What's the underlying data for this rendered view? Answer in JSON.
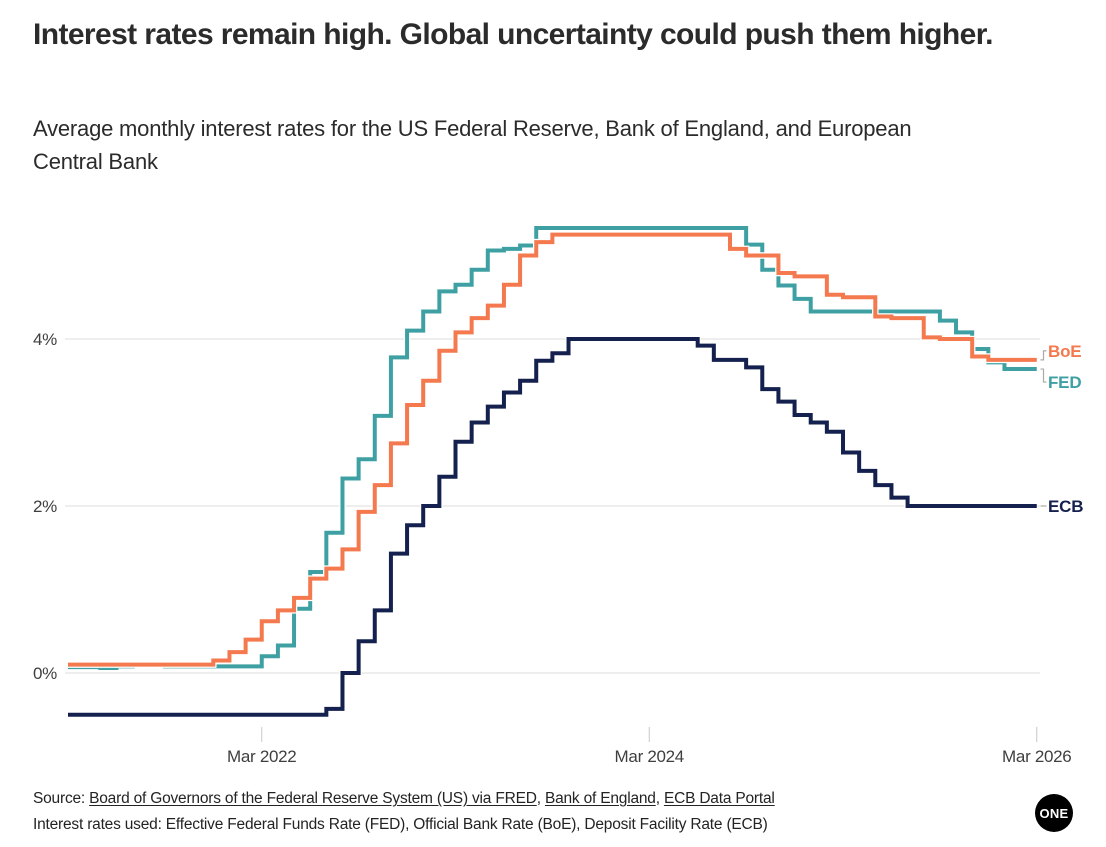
{
  "chart_data": {
    "type": "line",
    "style": "step",
    "title": "Interest rates remain high. Global uncertainty could push them higher.",
    "subtitle": "Average monthly interest rates for the US Federal Reserve, Bank of England, and European Central Bank",
    "unit": "%",
    "x_frequency": "monthly",
    "x_start_month": "2021-03",
    "x_end_month": "2026-02",
    "grid": "horizontal",
    "legend_position": "line-end-labels",
    "ylim": [
      -0.75,
      5.6
    ],
    "y_ticks": [
      {
        "label": "0%",
        "value": 0
      },
      {
        "label": "2%",
        "value": 2
      },
      {
        "label": "4%",
        "value": 4
      }
    ],
    "x_ticks": [
      {
        "label": "Mar 2022",
        "month_index": 12
      },
      {
        "label": "Mar 2024",
        "month_index": 36
      },
      {
        "label": "Mar 2026",
        "month_index": 60
      }
    ],
    "series": [
      {
        "name": "FED",
        "label": "FED",
        "color": "#3FA0A4",
        "values": [
          0.07,
          0.07,
          0.06,
          0.08,
          0.1,
          0.09,
          0.08,
          0.08,
          0.08,
          0.08,
          0.08,
          0.08,
          0.2,
          0.33,
          0.77,
          1.21,
          1.68,
          2.33,
          2.56,
          3.08,
          3.78,
          4.1,
          4.33,
          4.57,
          4.65,
          4.83,
          5.06,
          5.08,
          5.12,
          5.33,
          5.33,
          5.33,
          5.33,
          5.33,
          5.33,
          5.33,
          5.33,
          5.33,
          5.33,
          5.33,
          5.33,
          5.33,
          5.13,
          4.83,
          4.64,
          4.48,
          4.33,
          4.33,
          4.33,
          4.33,
          4.33,
          4.33,
          4.33,
          4.33,
          4.22,
          4.08,
          3.88,
          3.72,
          3.64,
          3.64
        ]
      },
      {
        "name": "BoE",
        "label": "BoE",
        "color": "#F4794E",
        "values": [
          0.1,
          0.1,
          0.1,
          0.1,
          0.1,
          0.1,
          0.1,
          0.1,
          0.1,
          0.15,
          0.25,
          0.4,
          0.62,
          0.75,
          0.9,
          1.13,
          1.25,
          1.48,
          1.93,
          2.25,
          2.75,
          3.21,
          3.5,
          3.86,
          4.08,
          4.25,
          4.4,
          4.65,
          5.0,
          5.16,
          5.25,
          5.25,
          5.25,
          5.25,
          5.25,
          5.25,
          5.25,
          5.25,
          5.25,
          5.25,
          5.25,
          5.08,
          5.0,
          5.0,
          4.79,
          4.75,
          4.75,
          4.53,
          4.5,
          4.5,
          4.27,
          4.25,
          4.25,
          4.02,
          4.0,
          4.0,
          3.79,
          3.75,
          3.75,
          3.75
        ]
      },
      {
        "name": "ECB",
        "label": "ECB",
        "color": "#14204E",
        "values": [
          -0.5,
          -0.5,
          -0.5,
          -0.5,
          -0.5,
          -0.5,
          -0.5,
          -0.5,
          -0.5,
          -0.5,
          -0.5,
          -0.5,
          -0.5,
          -0.5,
          -0.5,
          -0.5,
          -0.43,
          0.0,
          0.38,
          0.75,
          1.43,
          1.77,
          2.0,
          2.35,
          2.77,
          3.0,
          3.19,
          3.36,
          3.5,
          3.74,
          3.83,
          4.0,
          4.0,
          4.0,
          4.0,
          4.0,
          4.0,
          4.0,
          4.0,
          3.92,
          3.75,
          3.75,
          3.66,
          3.4,
          3.25,
          3.09,
          3.0,
          2.89,
          2.64,
          2.42,
          2.25,
          2.1,
          2.0,
          2.0,
          2.0,
          2.0,
          2.0,
          2.0,
          2.0,
          2.0
        ]
      }
    ]
  },
  "footer": {
    "source_label": "Source: ",
    "sources": [
      {
        "text": "Board of Governors of the Federal Reserve System (US) via FRED"
      },
      {
        "text": "Bank of England"
      },
      {
        "text": "ECB Data Portal"
      }
    ],
    "separator": ", ",
    "note": "Interest rates used: Effective Federal Funds Rate (FED), Official Bank Rate (BoE), Deposit Facility Rate (ECB)",
    "logo_text": "ONE"
  }
}
